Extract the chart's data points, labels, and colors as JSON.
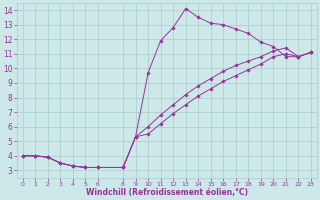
{
  "xlabel": "Windchill (Refroidissement éolien,°C)",
  "bg_color": "#cce8e8",
  "line_color": "#993399",
  "grid_color": "#aacccc",
  "xlim": [
    -0.5,
    23.5
  ],
  "ylim": [
    2.5,
    14.5
  ],
  "xticks": [
    0,
    1,
    2,
    3,
    4,
    5,
    6,
    8,
    9,
    10,
    11,
    12,
    13,
    14,
    15,
    16,
    17,
    18,
    19,
    20,
    21,
    22,
    23
  ],
  "yticks": [
    3,
    4,
    5,
    6,
    7,
    8,
    9,
    10,
    11,
    12,
    13,
    14
  ],
  "figsize": [
    3.2,
    2.0
  ],
  "dpi": 100,
  "series": [
    {
      "x": [
        0,
        1,
        2,
        3,
        4,
        5,
        6,
        8,
        9,
        10,
        11,
        12,
        13,
        14,
        15,
        16,
        17,
        18,
        19,
        20,
        21,
        22,
        23
      ],
      "y": [
        4.0,
        4.0,
        3.9,
        3.5,
        3.3,
        3.2,
        3.2,
        3.2,
        5.3,
        9.7,
        11.9,
        12.8,
        14.1,
        13.5,
        13.1,
        13.0,
        12.7,
        12.4,
        11.8,
        11.5,
        10.8,
        10.8,
        11.1
      ]
    },
    {
      "x": [
        0,
        1,
        2,
        3,
        4,
        5,
        6,
        8,
        9,
        10,
        11,
        12,
        13,
        14,
        15,
        16,
        17,
        18,
        19,
        20,
        21,
        22,
        23
      ],
      "y": [
        4.0,
        4.0,
        3.9,
        3.5,
        3.3,
        3.2,
        3.2,
        3.2,
        5.3,
        6.0,
        6.8,
        7.5,
        8.2,
        8.8,
        9.3,
        9.8,
        10.2,
        10.5,
        10.8,
        11.2,
        11.4,
        10.8,
        11.1
      ]
    },
    {
      "x": [
        0,
        1,
        2,
        3,
        4,
        5,
        6,
        8,
        9,
        10,
        11,
        12,
        13,
        14,
        15,
        16,
        17,
        18,
        19,
        20,
        21,
        22,
        23
      ],
      "y": [
        4.0,
        4.0,
        3.9,
        3.5,
        3.3,
        3.2,
        3.2,
        3.2,
        5.3,
        5.5,
        6.2,
        6.9,
        7.5,
        8.1,
        8.6,
        9.1,
        9.5,
        9.9,
        10.3,
        10.8,
        11.0,
        10.8,
        11.1
      ]
    }
  ],
  "tick_fontsize": 5.5,
  "xlabel_fontsize": 5.5
}
